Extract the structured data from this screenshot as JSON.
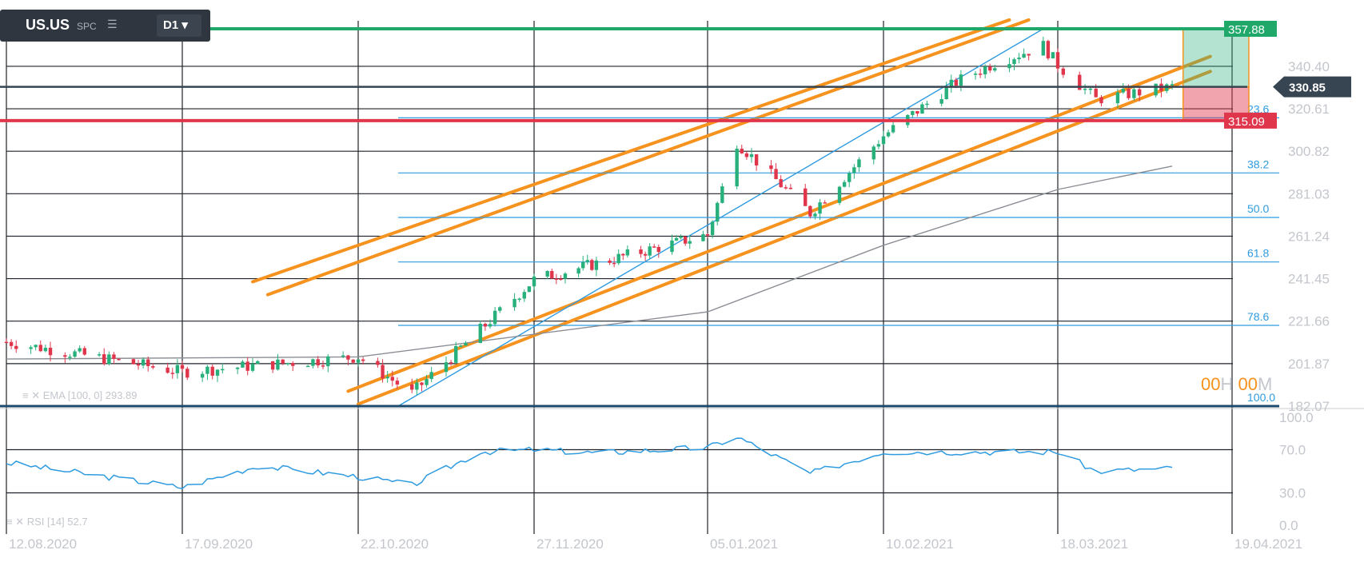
{
  "symbol": {
    "name": "US.US",
    "sub": "SPC",
    "timeframe": "D1",
    "menu_icon": "hamburger-icon",
    "caret_icon": "chevron-down-icon"
  },
  "countdown": {
    "h_value": "00",
    "h_unit": "H",
    "m_value": "00",
    "m_unit": "M"
  },
  "colors": {
    "bull": "#27b07b",
    "bear": "#e0364c",
    "channel": "#f6921e",
    "fib": "#2f9be0",
    "ema": "#8a8e94",
    "rsi": "#2f9be0",
    "resistance": "#1fa86a",
    "support": "#e0364c",
    "current": "#374451",
    "base": "#1e4a6e"
  },
  "chart_data": [
    {
      "type": "candlestick",
      "title": "",
      "x_ticks": [
        "12.08.2020",
        "17.09.2020",
        "22.10.2020",
        "27.11.2020",
        "05.01.2021",
        "10.02.2021",
        "18.03.2021",
        "19.04.2021"
      ],
      "y_ticks": [
        "340.40",
        "320.61",
        "300.82",
        "281.03",
        "261.24",
        "241.45",
        "221.66",
        "201.87",
        "182.07"
      ],
      "ylim": [
        182.07,
        357.88
      ],
      "grid": true,
      "price_levels": {
        "resistance": "357.88",
        "current": "330.85",
        "support": "315.09"
      },
      "fibonacci": {
        "levels": [
          "23.6",
          "38.2",
          "50.0",
          "61.8",
          "78.6",
          "100.0"
        ],
        "from_price": 182.07,
        "to_price": 357.88
      },
      "ema": {
        "label": "EMA [100, 0] 293.89",
        "period": 100,
        "last": 293.89
      },
      "close_points": [
        [
          "12.08.2020",
          212
        ],
        [
          "17.09.2020",
          198
        ],
        [
          "22.10.2020",
          205
        ],
        [
          "02.11.2020",
          188
        ],
        [
          "27.11.2020",
          241
        ],
        [
          "05.01.2021",
          262
        ],
        [
          "11.01.2021",
          305
        ],
        [
          "26.01.2021",
          272
        ],
        [
          "10.02.2021",
          308
        ],
        [
          "25.02.2021",
          333
        ],
        [
          "05.03.2021",
          342
        ],
        [
          "15.03.2021",
          350
        ],
        [
          "18.03.2021",
          341
        ],
        [
          "25.03.2021",
          325
        ],
        [
          "08.04.2021",
          330.85
        ]
      ],
      "ema_points": [
        [
          "12.08.2020",
          204
        ],
        [
          "22.10.2020",
          205
        ],
        [
          "05.01.2021",
          226
        ],
        [
          "10.02.2021",
          257
        ],
        [
          "18.03.2021",
          283
        ],
        [
          "08.04.2021",
          293.89
        ]
      ]
    },
    {
      "type": "line",
      "title": "",
      "label": "RSI [14] 52.7",
      "period": 14,
      "last": 52.7,
      "y_ticks": [
        "100.0",
        "70.0",
        "30.0",
        "0.0"
      ],
      "ylim": [
        0,
        100
      ],
      "grid": true,
      "points": [
        [
          "12.08.2020",
          58
        ],
        [
          "17.09.2020",
          35
        ],
        [
          "02.10.2020",
          55
        ],
        [
          "22.10.2020",
          45
        ],
        [
          "02.11.2020",
          37
        ],
        [
          "16.11.2020",
          68
        ],
        [
          "27.11.2020",
          70
        ],
        [
          "11.12.2020",
          67
        ],
        [
          "05.01.2021",
          72
        ],
        [
          "11.01.2021",
          82
        ],
        [
          "26.01.2021",
          48
        ],
        [
          "10.02.2021",
          68
        ],
        [
          "18.03.2021",
          68
        ],
        [
          "25.03.2021",
          50
        ],
        [
          "08.04.2021",
          52.7
        ]
      ]
    }
  ]
}
